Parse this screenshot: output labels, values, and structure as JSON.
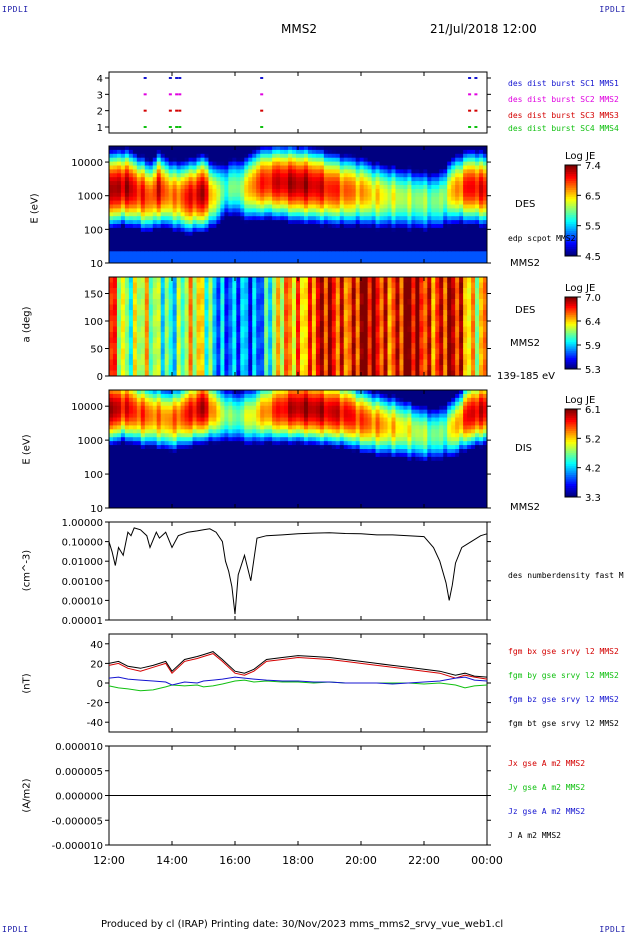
{
  "header": {
    "corner_tl": "IPDLI",
    "corner_tr": "IPDLI",
    "corner_bl": "IPDLI",
    "corner_br": "IPDLI",
    "spacecraft": "MMS2",
    "datetime": "21/Jul/2018 12:00"
  },
  "footer": {
    "text": "Produced by cl (IRAP)   Printing date: 30/Nov/2023   mms_mms2_srvy_vue_web1.cl"
  },
  "colors": {
    "red": "#d40000",
    "magenta": "#e000e0",
    "green": "#10c010",
    "blue": "#1414d0",
    "black": "#000000"
  },
  "x_axis": {
    "ticks": [
      "12:00",
      "14:00",
      "16:00",
      "18:00",
      "20:00",
      "22:00",
      "00:00"
    ],
    "tick_hours": [
      12,
      14,
      16,
      18,
      20,
      22,
      24
    ],
    "range_hours": [
      12,
      24
    ]
  },
  "panels": {
    "burst": {
      "ylabels": [
        "4",
        "3",
        "2",
        "1"
      ],
      "legend": [
        "des dist burst SC1 MMS1",
        "des dist burst SC2 MMS2",
        "des dist burst SC3 MMS3",
        "des dist burst SC4 MMS4"
      ],
      "legend_colors": [
        "#1414d0",
        "#e000e0",
        "#d40000",
        "#10c010"
      ]
    },
    "des_energy": {
      "ylabel": "E (eV)",
      "yticks": [
        "10000",
        "1000",
        "100",
        "10"
      ],
      "instrument": "DES",
      "scpot": "edp scpot MMS2",
      "sc": "MMS2",
      "cbar_title": "Log JE",
      "cbar_ticks": [
        "7.4",
        "6.5",
        "5.5",
        "4.5"
      ]
    },
    "des_pitch": {
      "ylabel": "a (deg)",
      "yticks": [
        "150",
        "100",
        "50",
        "0"
      ],
      "instrument": "DES",
      "sc": "MMS2",
      "range": "139-185 eV",
      "cbar_title": "Log JE",
      "cbar_ticks": [
        "7.0",
        "6.4",
        "5.9",
        "5.3"
      ]
    },
    "dis_energy": {
      "ylabel": "E (eV)",
      "yticks": [
        "10000",
        "1000",
        "100",
        "10"
      ],
      "instrument": "DIS",
      "sc": "MMS2",
      "cbar_title": "Log JE",
      "cbar_ticks": [
        "6.1",
        "5.2",
        "4.2",
        "3.3"
      ]
    },
    "density": {
      "ylabel": "(cm^-3)",
      "yticks": [
        "1.00000",
        "0.10000",
        "0.01000",
        "0.00100",
        "0.00010",
        "0.00001"
      ],
      "legend": "des numberdensity fast M"
    },
    "field": {
      "ylabel": "(nT)",
      "yticks": [
        "40",
        "20",
        "0",
        "-20",
        "-40"
      ],
      "ylim": [
        -50,
        50
      ],
      "legend": [
        "fgm bx gse srvy l2 MMS2",
        "fgm by gse srvy l2 MMS2",
        "fgm bz gse srvy l2 MMS2",
        "fgm bt gse srvy l2 MMS2"
      ],
      "legend_colors": [
        "#d40000",
        "#10c010",
        "#1414d0",
        "#000000"
      ]
    },
    "current": {
      "ylabel": "(A/m2)",
      "yticks": [
        "0.000010",
        "0.000005",
        "0.000000",
        "-0.000005",
        "-0.000010"
      ],
      "legend": [
        "Jx gse A m2 MMS2",
        "Jy gse A m2 MMS2",
        "Jz gse A m2 MMS2",
        "J A m2 MMS2"
      ],
      "legend_colors": [
        "#d40000",
        "#10c010",
        "#1414d0",
        "#000000"
      ]
    }
  },
  "chart_data": [
    {
      "type": "scatter",
      "title": "des dist burst",
      "series": [
        {
          "name": "des dist burst SC1 MMS1",
          "level": 4,
          "x_hours": [
            13.1,
            13.9,
            14.1,
            14.2,
            16.8,
            23.4,
            23.6
          ]
        },
        {
          "name": "des dist burst SC2 MMS2",
          "level": 3,
          "x_hours": [
            13.1,
            13.9,
            14.1,
            14.2,
            16.8,
            23.4,
            23.6
          ]
        },
        {
          "name": "des dist burst SC3 MMS3",
          "level": 2,
          "x_hours": [
            13.1,
            13.9,
            14.1,
            14.2,
            16.8,
            23.4,
            23.6
          ]
        },
        {
          "name": "des dist burst SC4 MMS4",
          "level": 1,
          "x_hours": [
            13.1,
            13.9,
            14.1,
            14.2,
            16.8,
            23.4,
            23.6
          ]
        }
      ]
    },
    {
      "type": "heatmap",
      "title": "DES energy spectrogram",
      "ylabel": "E (eV)",
      "yscale": "log",
      "ylim": [
        10,
        30000
      ],
      "colorbar": "Log JE",
      "clim": [
        4.5,
        7.4
      ],
      "x_hours": [
        12.0,
        12.5,
        13.0,
        13.3,
        13.6,
        14.0,
        14.5,
        15.0,
        15.4,
        15.7,
        16.0,
        16.3,
        16.6,
        17.0,
        17.5,
        18.0,
        18.5,
        19.0,
        19.5,
        20.0,
        20.5,
        21.0,
        21.5,
        22.0,
        22.5,
        23.0,
        23.5,
        24.0
      ],
      "peak_energy_ev": [
        1500,
        1800,
        1200,
        900,
        1500,
        1000,
        900,
        1200,
        1000,
        1500,
        1800,
        1500,
        2000,
        2500,
        2500,
        2200,
        2000,
        1600,
        1400,
        1300,
        1000,
        900,
        800,
        700,
        700,
        1500,
        1800,
        1500
      ],
      "peak_log_je": [
        7.2,
        7.3,
        7.0,
        6.8,
        7.1,
        6.6,
        7.0,
        7.3,
        6.2,
        5.8,
        5.9,
        6.2,
        6.8,
        7.0,
        7.2,
        7.3,
        7.2,
        7.0,
        6.8,
        6.6,
        6.4,
        6.2,
        6.1,
        6.0,
        5.9,
        6.6,
        7.1,
        7.0
      ]
    },
    {
      "type": "heatmap",
      "title": "DES pitch angle 139-185 eV",
      "ylabel": "a (deg)",
      "ylim": [
        0,
        180
      ],
      "colorbar": "Log JE",
      "clim": [
        5.3,
        7.0
      ],
      "x_hours": [
        12.0,
        12.5,
        13.0,
        13.5,
        14.0,
        14.5,
        15.0,
        15.5,
        16.0,
        16.5,
        17.0,
        17.5,
        18.0,
        18.5,
        19.0,
        19.5,
        20.0,
        20.5,
        21.0,
        21.5,
        22.0,
        22.5,
        23.0,
        23.5,
        24.0
      ],
      "mean_log_je": [
        6.6,
        6.2,
        6.4,
        6.0,
        6.1,
        6.3,
        6.2,
        5.9,
        5.6,
        5.7,
        6.0,
        6.3,
        6.6,
        6.7,
        6.7,
        6.8,
        6.8,
        6.8,
        6.8,
        6.8,
        6.8,
        6.8,
        6.7,
        6.5,
        6.5
      ]
    },
    {
      "type": "heatmap",
      "title": "DIS energy spectrogram",
      "ylabel": "E (eV)",
      "yscale": "log",
      "ylim": [
        10,
        30000
      ],
      "colorbar": "Log JE",
      "clim": [
        3.3,
        6.1
      ],
      "x_hours": [
        12.0,
        12.5,
        13.0,
        13.5,
        14.0,
        14.5,
        15.0,
        15.5,
        16.0,
        16.5,
        17.0,
        17.5,
        18.0,
        18.5,
        19.0,
        19.5,
        20.0,
        20.5,
        21.0,
        21.5,
        22.0,
        22.5,
        23.0,
        23.5,
        24.0
      ],
      "peak_energy_ev": [
        8000,
        9000,
        6000,
        5000,
        4000,
        6000,
        9000,
        6000,
        5000,
        5000,
        7000,
        8000,
        9000,
        8000,
        7000,
        6000,
        4000,
        3000,
        2500,
        2000,
        1500,
        1500,
        2500,
        6000,
        8000
      ],
      "peak_log_je": [
        6.0,
        5.8,
        5.6,
        5.4,
        5.4,
        5.7,
        6.0,
        5.0,
        4.6,
        5.0,
        5.4,
        5.8,
        6.0,
        6.0,
        5.9,
        5.8,
        5.6,
        5.4,
        5.2,
        5.0,
        4.8,
        4.6,
        5.2,
        5.9,
        5.8
      ]
    },
    {
      "type": "line",
      "title": "des numberdensity fast",
      "ylabel": "(cm^-3)",
      "yscale": "log",
      "ylim": [
        1e-05,
        1.0
      ],
      "x_hours": [
        12.0,
        12.1,
        12.2,
        12.3,
        12.45,
        12.6,
        12.7,
        12.8,
        13.0,
        13.2,
        13.3,
        13.5,
        13.6,
        13.8,
        14.0,
        14.2,
        14.5,
        14.8,
        15.0,
        15.2,
        15.4,
        15.6,
        15.7,
        15.8,
        15.9,
        16.0,
        16.1,
        16.3,
        16.5,
        16.7,
        17.0,
        17.5,
        18.0,
        18.5,
        19.0,
        19.5,
        20.0,
        20.5,
        21.0,
        21.5,
        22.0,
        22.3,
        22.5,
        22.7,
        22.8,
        22.9,
        23.0,
        23.2,
        23.5,
        23.8,
        24.0
      ],
      "y": [
        0.1,
        0.03,
        0.006,
        0.05,
        0.02,
        0.3,
        0.2,
        0.5,
        0.4,
        0.2,
        0.05,
        0.3,
        0.15,
        0.3,
        0.05,
        0.2,
        0.3,
        0.35,
        0.4,
        0.45,
        0.3,
        0.1,
        0.01,
        0.003,
        0.0005,
        2e-05,
        0.002,
        0.02,
        0.001,
        0.15,
        0.2,
        0.22,
        0.25,
        0.27,
        0.28,
        0.26,
        0.25,
        0.22,
        0.22,
        0.2,
        0.18,
        0.05,
        0.01,
        0.0008,
        0.0001,
        0.0006,
        0.008,
        0.05,
        0.1,
        0.2,
        0.25
      ]
    },
    {
      "type": "line",
      "title": "fgm gse srvy l2 MMS2",
      "ylabel": "(nT)",
      "ylim": [
        -50,
        50
      ],
      "x_hours": [
        12.0,
        12.3,
        12.6,
        13.0,
        13.4,
        13.8,
        14.0,
        14.4,
        14.8,
        15.0,
        15.3,
        15.6,
        16.0,
        16.3,
        16.6,
        17.0,
        17.5,
        18.0,
        18.5,
        19.0,
        19.5,
        20.0,
        20.5,
        21.0,
        21.5,
        22.0,
        22.5,
        23.0,
        23.3,
        23.6,
        24.0
      ],
      "series": [
        {
          "name": "fgm bx gse srvy l2 MMS2",
          "values": [
            18,
            20,
            15,
            12,
            16,
            20,
            10,
            22,
            25,
            27,
            30,
            22,
            10,
            8,
            12,
            22,
            24,
            26,
            25,
            24,
            22,
            20,
            18,
            16,
            14,
            12,
            10,
            5,
            8,
            6,
            4
          ]
        },
        {
          "name": "fgm by gse srvy l2 MMS2",
          "values": [
            -3,
            -5,
            -6,
            -8,
            -7,
            -4,
            -2,
            -3,
            -2,
            -4,
            -3,
            -1,
            2,
            3,
            1,
            2,
            1,
            1,
            0,
            1,
            0,
            0,
            0,
            0,
            0,
            -1,
            0,
            -2,
            -5,
            -3,
            -2
          ]
        },
        {
          "name": "fgm bz gse srvy l2 MMS2",
          "values": [
            5,
            6,
            4,
            3,
            2,
            1,
            -2,
            1,
            0,
            2,
            3,
            4,
            6,
            5,
            4,
            3,
            2,
            2,
            1,
            1,
            0,
            0,
            0,
            -1,
            0,
            1,
            2,
            5,
            6,
            3,
            2
          ]
        },
        {
          "name": "fgm bt gse srvy l2 MMS2",
          "values": [
            20,
            22,
            17,
            15,
            18,
            22,
            12,
            24,
            27,
            29,
            32,
            24,
            12,
            10,
            14,
            24,
            26,
            28,
            27,
            26,
            24,
            22,
            20,
            18,
            16,
            14,
            12,
            8,
            10,
            7,
            6
          ]
        }
      ]
    },
    {
      "type": "line",
      "title": "J A m2 MMS2",
      "ylabel": "(A/m2)",
      "ylim": [
        -1e-05,
        1e-05
      ],
      "x_hours": [
        12.0,
        14.0,
        16.0,
        18.0,
        20.0,
        22.0,
        24.0
      ],
      "series": [
        {
          "name": "J A m2 MMS2",
          "values": [
            0.0,
            0.0,
            0.0,
            0.0,
            0.0,
            0.0,
            0.0
          ]
        }
      ]
    }
  ]
}
